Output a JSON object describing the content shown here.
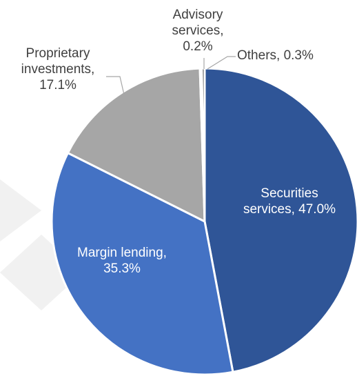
{
  "chart_data": {
    "type": "pie",
    "title": "",
    "start_angle_deg": 0,
    "direction": "clockwise",
    "slices": [
      {
        "name": "Securities services",
        "value": 47.0,
        "label_lines": [
          "Securities",
          "services, 47.0%"
        ],
        "color": "#2f5597",
        "label_position": "inside"
      },
      {
        "name": "Margin lending",
        "value": 35.3,
        "label_lines": [
          "Margin lending,",
          "35.3%"
        ],
        "color": "#4472c4",
        "label_position": "inside"
      },
      {
        "name": "Proprietary investments",
        "value": 17.1,
        "label_lines": [
          "Proprietary",
          "investments,",
          "17.1%"
        ],
        "color": "#a6a6a6",
        "label_position": "outside"
      },
      {
        "name": "Advisory services",
        "value": 0.2,
        "label_lines": [
          "Advisory",
          "services,",
          "0.2%"
        ],
        "color": "#7f7f7f",
        "label_position": "outside"
      },
      {
        "name": "Others",
        "value": 0.3,
        "label_lines": [
          "Others, 0.3%"
        ],
        "color": "#5b5b5b",
        "label_position": "outside"
      }
    ]
  }
}
